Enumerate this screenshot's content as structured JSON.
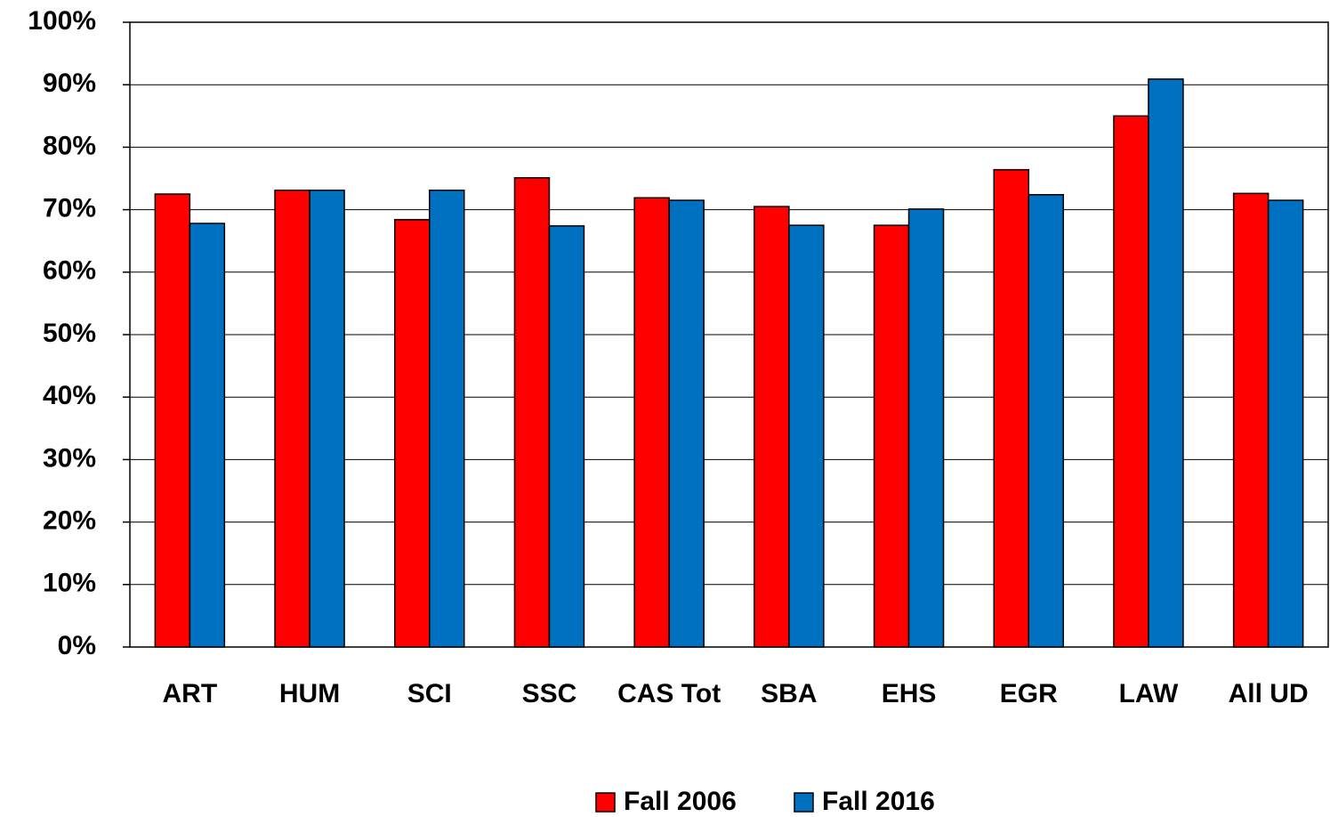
{
  "chart_data": {
    "type": "bar",
    "categories": [
      "ART",
      "HUM",
      "SCI",
      "SSC",
      "CAS Tot",
      "SBA",
      "EHS",
      "EGR",
      "LAW",
      "All UD"
    ],
    "series": [
      {
        "name": "Fall 2006",
        "color": "#ff0000",
        "values": [
          72.5,
          73.1,
          68.4,
          75.1,
          71.9,
          70.5,
          67.5,
          76.4,
          85.0,
          72.6
        ]
      },
      {
        "name": "Fall 2016",
        "color": "#0070c0",
        "values": [
          67.8,
          73.1,
          73.1,
          67.4,
          71.5,
          67.5,
          70.1,
          72.4,
          90.9,
          71.5
        ]
      }
    ],
    "ylim": [
      0,
      100
    ],
    "yticks": [
      {
        "value": 0,
        "label": "0%"
      },
      {
        "value": 10,
        "label": "10%"
      },
      {
        "value": 20,
        "label": "20%"
      },
      {
        "value": 30,
        "label": "30%"
      },
      {
        "value": 40,
        "label": "40%"
      },
      {
        "value": 50,
        "label": "50%"
      },
      {
        "value": 60,
        "label": "60%"
      },
      {
        "value": 70,
        "label": "70%"
      },
      {
        "value": 80,
        "label": "80%"
      },
      {
        "value": 90,
        "label": "90%"
      },
      {
        "value": 100,
        "label": "100%"
      }
    ],
    "grid": true,
    "legend": "bottom"
  }
}
